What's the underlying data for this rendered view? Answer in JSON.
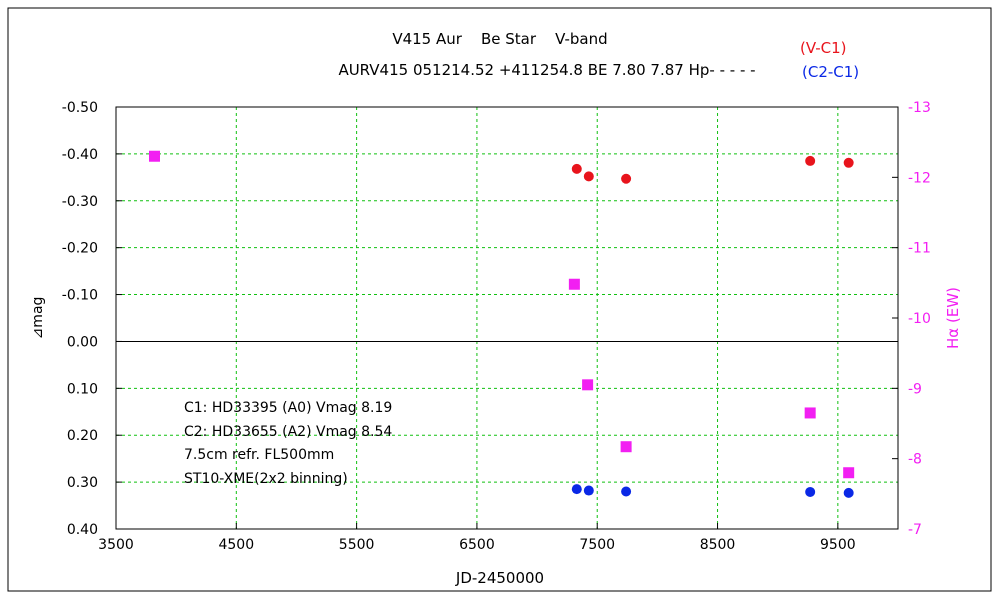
{
  "chart_data": {
    "type": "scatter",
    "title": "V415 Aur    Be Star    V-band",
    "subtitle": "AURV415 051214.52 +411254.8 BE 7.80 7.87 Hp- - - - -",
    "xlabel": "JD-2450000",
    "ylabel": "⊿mag",
    "ylabel_right": "Hα (EW)",
    "xlim": [
      3500,
      10000
    ],
    "ylim": [
      0.4,
      -0.5
    ],
    "ylim_right": [
      -7,
      -13
    ],
    "x_ticks": [
      3500,
      4500,
      5500,
      6500,
      7500,
      8500,
      9500
    ],
    "y_ticks": [
      -0.5,
      -0.4,
      -0.3,
      -0.2,
      -0.1,
      0.0,
      0.1,
      0.2,
      0.3,
      0.4
    ],
    "y_tick_labels": [
      "-0.50",
      "-0.40",
      "-0.30",
      "-0.20",
      "-0.10",
      "0.00",
      "0.10",
      "0.20",
      "0.30",
      "0.40"
    ],
    "y_right_ticks": [
      -13,
      -12,
      -11,
      -10,
      -9,
      -8,
      -7
    ],
    "y_right_tick_labels": [
      "-13",
      "-12",
      "-11",
      "-10",
      "-9",
      "-8",
      "-7"
    ],
    "grid": true,
    "legend_position": "top-right",
    "series": [
      {
        "name": "(V-C1)",
        "color": "#e8141c",
        "marker": "circle",
        "axis": "left",
        "x": [
          7330,
          7430,
          7740,
          9270,
          9590
        ],
        "y": [
          -0.368,
          -0.352,
          -0.347,
          -0.385,
          -0.381
        ]
      },
      {
        "name": "(C2-C1)",
        "color": "#0a28e6",
        "marker": "circle",
        "axis": "left",
        "x": [
          7330,
          7430,
          7740,
          9270,
          9590
        ],
        "y": [
          0.315,
          0.318,
          0.32,
          0.321,
          0.323
        ]
      },
      {
        "name": "",
        "color": "#f21ff2",
        "marker": "square",
        "axis": "right",
        "x": [
          3820,
          7310,
          7420,
          7740,
          9270,
          9590
        ],
        "y": [
          -12.3,
          -10.48,
          -9.05,
          -8.17,
          -8.65,
          -7.8
        ]
      }
    ],
    "annotations": [
      "C1: HD33395 (A0) Vmag 8.19",
      "C2: HD33655 (A2) Vmag 8.54",
      "7.5cm refr. FL500mm",
      "ST10-XME(2x2 binning)"
    ]
  }
}
